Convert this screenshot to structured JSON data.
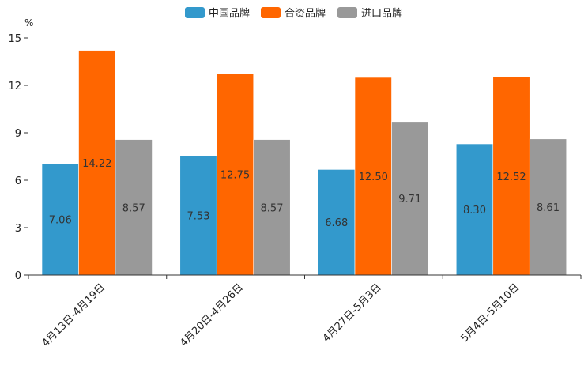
{
  "chart_data": {
    "type": "bar",
    "title": "",
    "ylabel": "%",
    "xlabel": "",
    "ylim": [
      0,
      15
    ],
    "yticks": [
      0,
      3,
      6,
      9,
      12,
      15
    ],
    "categories": [
      "4月13日-4月19日",
      "4月20日-4月26日",
      "4月27日-5月3日",
      "5月4日-5月10日"
    ],
    "series": [
      {
        "name": "中国品牌",
        "color": "#3399cc",
        "values": [
          7.06,
          7.53,
          6.68,
          8.3
        ]
      },
      {
        "name": "合资品牌",
        "color": "#ff6600",
        "values": [
          14.22,
          12.75,
          12.5,
          12.52
        ]
      },
      {
        "name": "进口品牌",
        "color": "#999999",
        "values": [
          8.57,
          8.57,
          9.71,
          8.61
        ]
      }
    ],
    "legend_position": "top-center",
    "grid": false
  }
}
